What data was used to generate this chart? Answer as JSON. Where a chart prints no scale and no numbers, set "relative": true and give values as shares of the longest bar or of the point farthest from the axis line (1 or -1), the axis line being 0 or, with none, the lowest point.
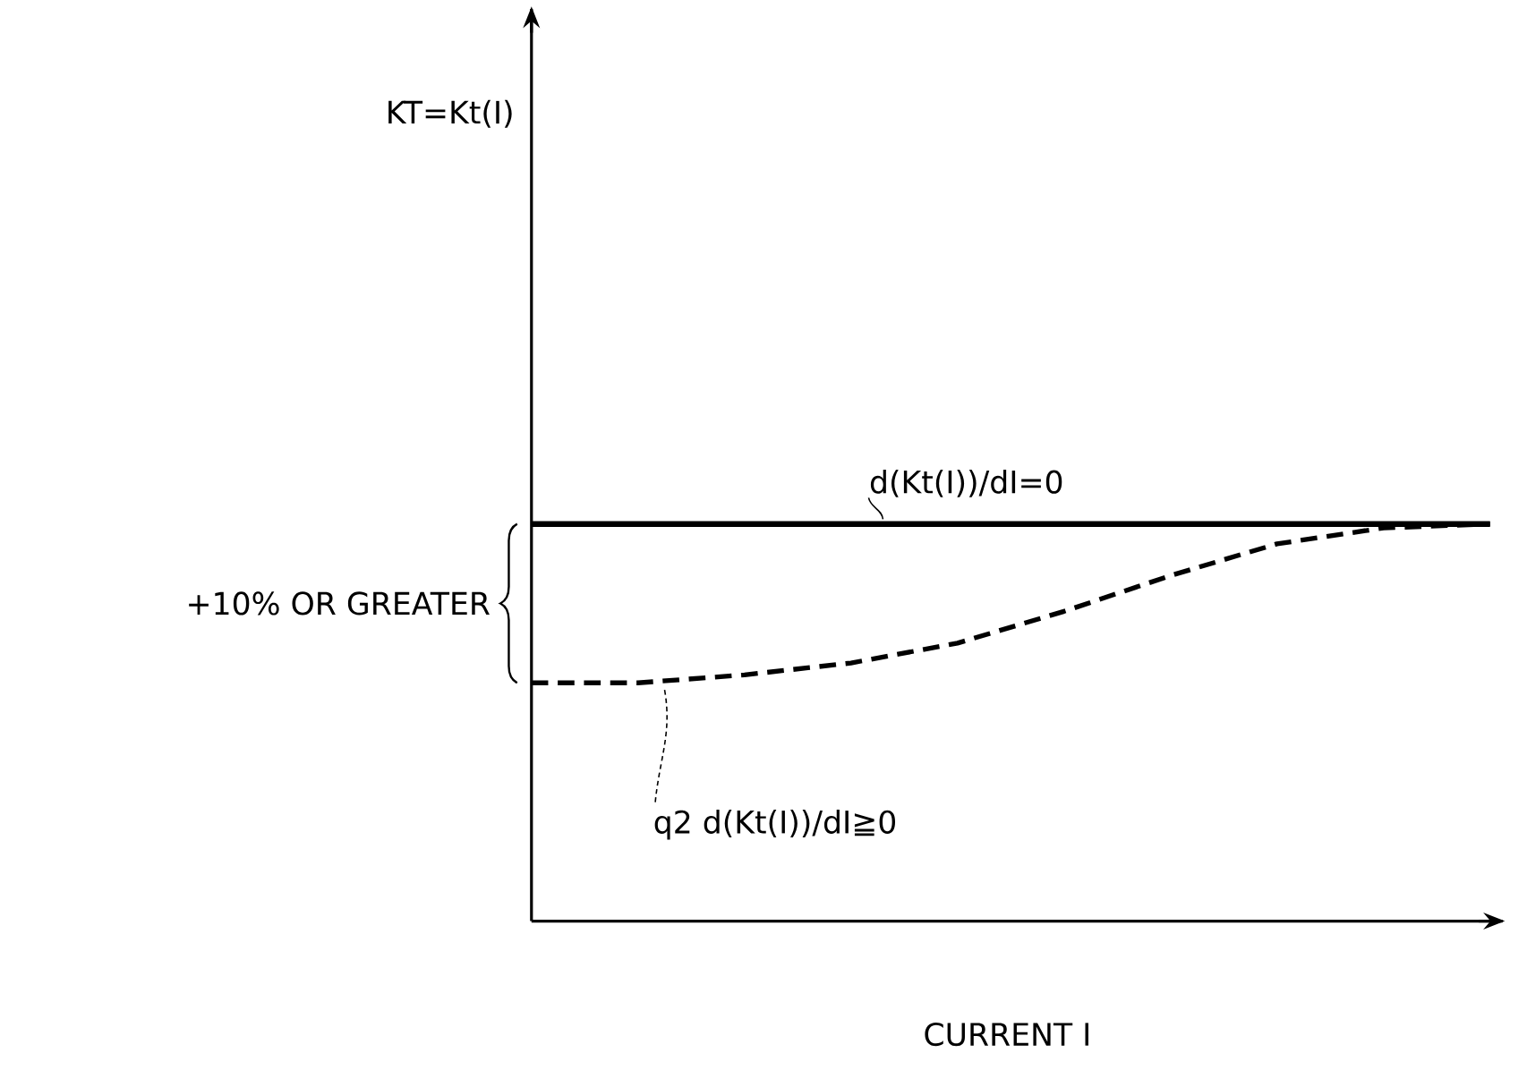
{
  "chart_data": {
    "type": "line",
    "relative": true,
    "xlabel": "CURRENT I",
    "categories": [
      null,
      null,
      null,
      null,
      null,
      null,
      null,
      null,
      null,
      null
    ],
    "series": [
      {
        "color": "#000000",
        "line_style": "solid",
        "values": [
          1,
          1,
          1,
          1,
          1,
          1,
          1,
          1,
          1,
          1
        ]
      },
      {
        "color": "#000000",
        "line_style": "dashed",
        "values": [
          0.6,
          0.6,
          0.62,
          0.65,
          0.7,
          0.78,
          0.87,
          0.95,
          0.99,
          1
        ]
      }
    ],
    "annotations": [
      "d(Kt(I))/dI=0",
      "q2  d(Kt(I))/dI≧0",
      "+10% OR GREATER",
      "KT=Kt(I)"
    ]
  }
}
